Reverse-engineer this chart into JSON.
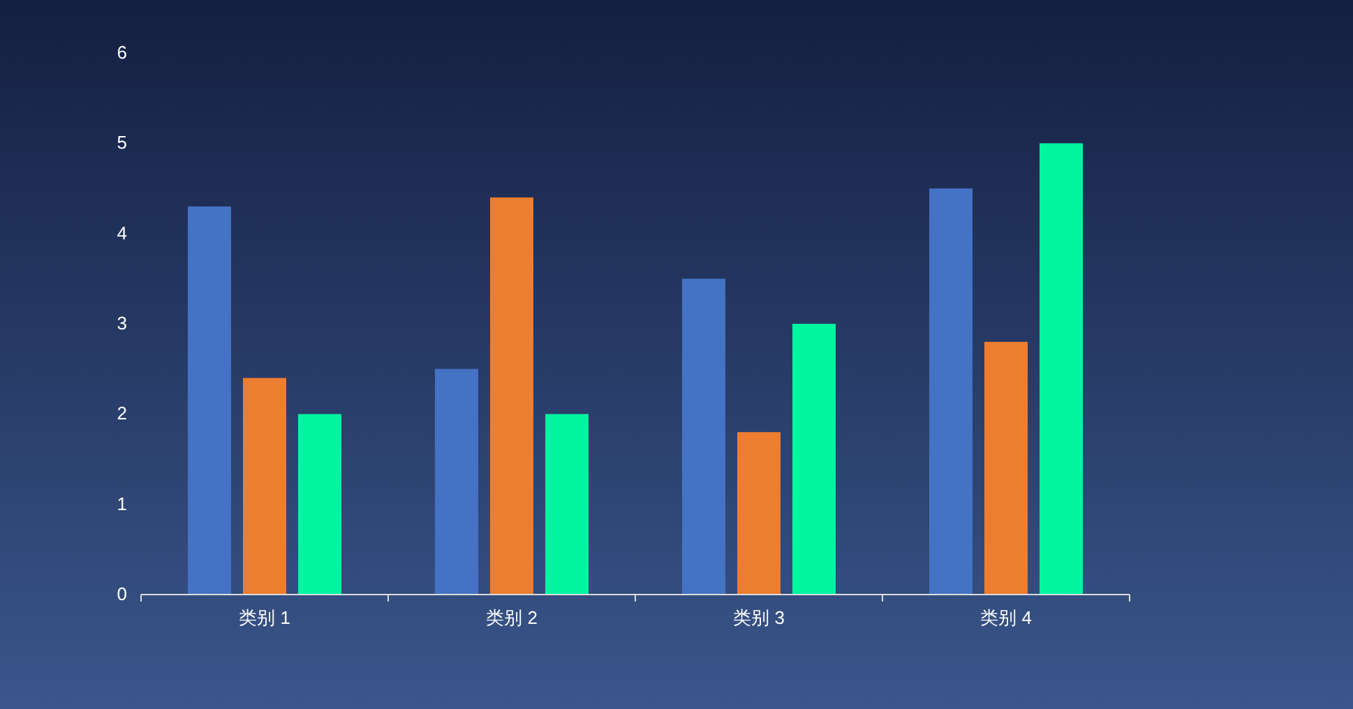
{
  "chart_data": {
    "type": "bar",
    "categories": [
      "类别 1",
      "类别 2",
      "类别 3",
      "类别 4"
    ],
    "series": [
      {
        "color": "#4472c4",
        "values": [
          4.3,
          2.5,
          3.5,
          4.5
        ]
      },
      {
        "color": "#ed7d31",
        "values": [
          2.4,
          4.4,
          1.8,
          2.8
        ]
      },
      {
        "color": "#00f5a0",
        "values": [
          2,
          2,
          3,
          5
        ]
      }
    ],
    "ylim": [
      0,
      6
    ],
    "yticks": [
      0,
      1,
      2,
      3,
      4,
      5,
      6
    ],
    "grid": false
  }
}
